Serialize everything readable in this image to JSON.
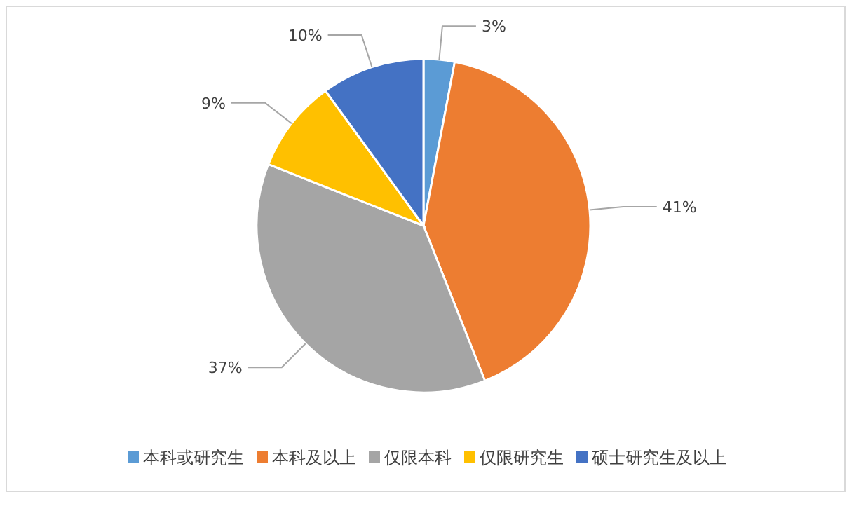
{
  "chart_data": {
    "type": "pie",
    "categories": [
      "本科或研究生",
      "本科及以上",
      "仅限本科",
      "仅限研究生",
      "硕士研究生及以上"
    ],
    "values": [
      3,
      41,
      37,
      9,
      10
    ],
    "colors": [
      "#5b9bd5",
      "#ed7d31",
      "#a5a5a5",
      "#ffc000",
      "#4472c4"
    ],
    "value_labels": [
      "3%",
      "41%",
      "37%",
      "9%",
      "10%"
    ],
    "legend": "bottom"
  }
}
